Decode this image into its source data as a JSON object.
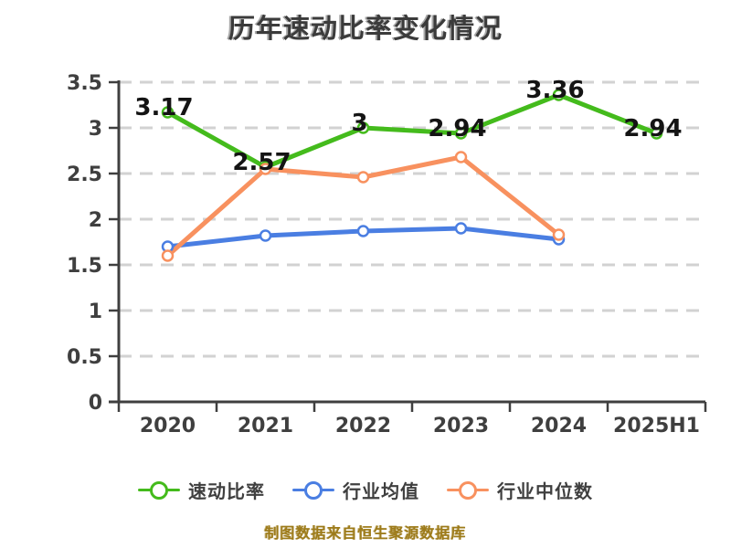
{
  "title": "历年速动比率变化情况",
  "footer": "制图数据来自恒生聚源数据库",
  "colors": {
    "axis": "#3f3f3f",
    "grid": "#d2d2d2",
    "title": "#3b3b3b",
    "value_label": "#141414",
    "footer": "#9d7b1a",
    "series_quick_ratio": "#44bb1c",
    "series_industry_avg": "#4a7ee2",
    "series_industry_median": "#f8915f"
  },
  "legend": {
    "items": [
      {
        "label": "速动比率",
        "color": "#44bb1c"
      },
      {
        "label": "行业均值",
        "color": "#4a7ee2"
      },
      {
        "label": "行业中位数",
        "color": "#f8915f"
      }
    ]
  },
  "chart_data": {
    "type": "line",
    "title": "历年速动比率变化情况",
    "categories": [
      "2020",
      "2021",
      "2022",
      "2023",
      "2024",
      "2025H1"
    ],
    "series": [
      {
        "name": "速动比率",
        "color": "#44bb1c",
        "values": [
          3.17,
          2.57,
          3,
          2.94,
          3.36,
          2.94
        ],
        "labeled": true
      },
      {
        "name": "行业均值",
        "color": "#4a7ee2",
        "values": [
          1.7,
          1.82,
          1.87,
          1.9,
          1.78,
          null
        ],
        "labeled": false
      },
      {
        "name": "行业中位数",
        "color": "#f8915f",
        "values": [
          1.6,
          2.55,
          2.46,
          2.68,
          1.83,
          null
        ],
        "labeled": false
      }
    ],
    "value_labels": [
      "3.17",
      "2.57",
      "3",
      "2.94",
      "3.36",
      "2.94"
    ],
    "ylim": [
      0,
      3.5
    ],
    "ytick_step": 0.5,
    "yticks": [
      "0",
      "0.5",
      "1",
      "1.5",
      "2",
      "2.5",
      "3",
      "3.5"
    ],
    "grid": "dashed horizontal",
    "legend_position": "bottom",
    "annotation": "制图数据来自恒生聚源数据库"
  }
}
